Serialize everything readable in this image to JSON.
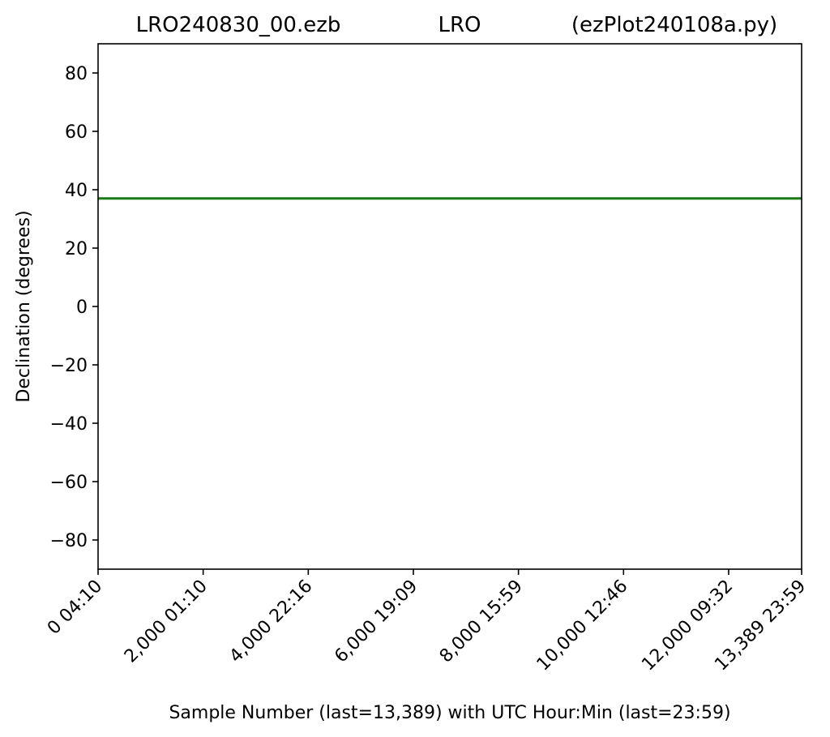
{
  "chart_data": {
    "type": "line",
    "title_left": "LRO240830_00.ezb",
    "title_center": "LRO",
    "title_right": "(ezPlot240108a.py)",
    "xlabel": "Sample Number (last=13,389) with UTC Hour:Min (last=23:59)",
    "ylabel": "Declination (degrees)",
    "xlim": [
      0,
      13389
    ],
    "ylim": [
      -90,
      90
    ],
    "yticks": [
      80,
      60,
      40,
      20,
      0,
      -20,
      -40,
      -60,
      -80
    ],
    "ytick_labels": [
      "80",
      "60",
      "40",
      "20",
      "0",
      "−20",
      "−40",
      "−60",
      "−80"
    ],
    "xticks": [
      {
        "value": 0,
        "label": "0  04:10"
      },
      {
        "value": 2000,
        "label": "2,000  01:10"
      },
      {
        "value": 4000,
        "label": "4,000  22:16"
      },
      {
        "value": 6000,
        "label": "6,000  19:09"
      },
      {
        "value": 8000,
        "label": "8,000  15:59"
      },
      {
        "value": 10000,
        "label": "10,000  12:46"
      },
      {
        "value": 12000,
        "label": "12,000  09:32"
      },
      {
        "value": 13389,
        "label": "13,389  23:59"
      }
    ],
    "grid": false,
    "series": [
      {
        "color": "#1a7a1a",
        "x": [
          0,
          13389
        ],
        "values": [
          37,
          37
        ]
      }
    ]
  }
}
